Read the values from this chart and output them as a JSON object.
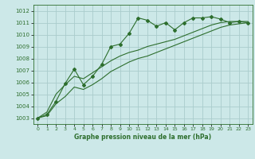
{
  "title": "Graphe pression niveau de la mer (hPa)",
  "bg_color": "#cce8e8",
  "grid_color": "#aacccc",
  "line_color": "#2d6e2d",
  "xlim": [
    -0.5,
    23.5
  ],
  "ylim": [
    1002.5,
    1012.5
  ],
  "yticks": [
    1003,
    1004,
    1005,
    1006,
    1007,
    1008,
    1009,
    1010,
    1011,
    1012
  ],
  "xticks": [
    0,
    1,
    2,
    3,
    4,
    5,
    6,
    7,
    8,
    9,
    10,
    11,
    12,
    13,
    14,
    15,
    16,
    17,
    18,
    19,
    20,
    21,
    22,
    23
  ],
  "series1": [
    1003.0,
    1003.3,
    1004.4,
    1005.9,
    1007.1,
    1005.8,
    1006.5,
    1007.5,
    1009.0,
    1009.2,
    1010.1,
    1011.4,
    1011.2,
    1010.7,
    1011.0,
    1010.4,
    1011.0,
    1011.4,
    1011.4,
    1011.5,
    1011.3,
    1011.0,
    1011.1,
    1011.0
  ],
  "series2": [
    1003.0,
    1003.5,
    1005.0,
    1005.8,
    1006.5,
    1006.3,
    1006.8,
    1007.3,
    1007.8,
    1008.2,
    1008.5,
    1008.7,
    1009.0,
    1009.2,
    1009.4,
    1009.6,
    1009.9,
    1010.2,
    1010.5,
    1010.8,
    1011.0,
    1011.1,
    1011.1,
    1011.1
  ],
  "series3": [
    1003.0,
    1003.2,
    1004.2,
    1004.8,
    1005.6,
    1005.4,
    1005.8,
    1006.3,
    1006.9,
    1007.3,
    1007.7,
    1008.0,
    1008.2,
    1008.5,
    1008.8,
    1009.1,
    1009.4,
    1009.7,
    1010.0,
    1010.3,
    1010.6,
    1010.8,
    1010.9,
    1011.0
  ]
}
